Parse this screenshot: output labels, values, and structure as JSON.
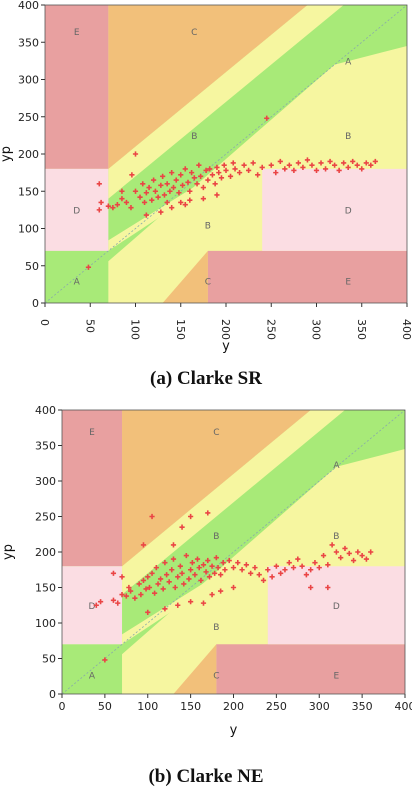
{
  "chart_data": [
    {
      "type": "scatter",
      "caption": "(a) Clarke SR",
      "xlabel": "y",
      "ylabel": "yp",
      "xlim": [
        0,
        400
      ],
      "ylim": [
        0,
        400
      ],
      "xticks": [
        "0",
        "50",
        "100",
        "150",
        "200",
        "250",
        "300",
        "350",
        "400"
      ],
      "yticks": [
        "0",
        "50",
        "100",
        "150",
        "200",
        "250",
        "300",
        "350",
        "400"
      ],
      "x_tick_rotated": true,
      "zone_labels": [
        {
          "label": "E",
          "x": 35,
          "y": 360
        },
        {
          "label": "C",
          "x": 165,
          "y": 360
        },
        {
          "label": "A",
          "x": 335,
          "y": 320
        },
        {
          "label": "B",
          "x": 165,
          "y": 220
        },
        {
          "label": "B",
          "x": 335,
          "y": 220
        },
        {
          "label": "D",
          "x": 35,
          "y": 120
        },
        {
          "label": "D",
          "x": 335,
          "y": 120
        },
        {
          "label": "B",
          "x": 180,
          "y": 100
        },
        {
          "label": "A",
          "x": 35,
          "y": 25
        },
        {
          "label": "C",
          "x": 180,
          "y": 25
        },
        {
          "label": "E",
          "x": 335,
          "y": 25
        }
      ],
      "points": [
        [
          48,
          48
        ],
        [
          60,
          125
        ],
        [
          62,
          135
        ],
        [
          70,
          130
        ],
        [
          75,
          128
        ],
        [
          80,
          132
        ],
        [
          85,
          140
        ],
        [
          90,
          135
        ],
        [
          95,
          128
        ],
        [
          100,
          150
        ],
        [
          105,
          142
        ],
        [
          108,
          160
        ],
        [
          110,
          135
        ],
        [
          112,
          148
        ],
        [
          115,
          155
        ],
        [
          118,
          138
        ],
        [
          120,
          165
        ],
        [
          122,
          150
        ],
        [
          125,
          142
        ],
        [
          128,
          158
        ],
        [
          130,
          170
        ],
        [
          132,
          145
        ],
        [
          135,
          160
        ],
        [
          138,
          150
        ],
        [
          140,
          175
        ],
        [
          142,
          155
        ],
        [
          145,
          165
        ],
        [
          148,
          148
        ],
        [
          150,
          172
        ],
        [
          152,
          158
        ],
        [
          155,
          180
        ],
        [
          158,
          162
        ],
        [
          160,
          150
        ],
        [
          162,
          175
        ],
        [
          165,
          168
        ],
        [
          168,
          160
        ],
        [
          170,
          185
        ],
        [
          172,
          170
        ],
        [
          175,
          155
        ],
        [
          178,
          178
        ],
        [
          180,
          165
        ],
        [
          182,
          180
        ],
        [
          185,
          172
        ],
        [
          188,
          160
        ],
        [
          190,
          182
        ],
        [
          192,
          175
        ],
        [
          195,
          168
        ],
        [
          198,
          185
        ],
        [
          200,
          178
        ],
        [
          205,
          170
        ],
        [
          208,
          188
        ],
        [
          210,
          180
        ],
        [
          215,
          175
        ],
        [
          220,
          185
        ],
        [
          225,
          178
        ],
        [
          230,
          188
        ],
        [
          235,
          172
        ],
        [
          240,
          182
        ],
        [
          245,
          248
        ],
        [
          250,
          185
        ],
        [
          255,
          175
        ],
        [
          260,
          190
        ],
        [
          265,
          180
        ],
        [
          270,
          185
        ],
        [
          275,
          178
        ],
        [
          280,
          188
        ],
        [
          285,
          182
        ],
        [
          290,
          192
        ],
        [
          295,
          185
        ],
        [
          300,
          178
        ],
        [
          305,
          188
        ],
        [
          310,
          180
        ],
        [
          315,
          190
        ],
        [
          320,
          185
        ],
        [
          325,
          178
        ],
        [
          330,
          188
        ],
        [
          335,
          182
        ],
        [
          340,
          190
        ],
        [
          345,
          185
        ],
        [
          350,
          180
        ],
        [
          355,
          188
        ],
        [
          360,
          185
        ],
        [
          365,
          190
        ],
        [
          128,
          122
        ],
        [
          140,
          128
        ],
        [
          155,
          132
        ],
        [
          100,
          200
        ],
        [
          112,
          118
        ],
        [
          96,
          172
        ],
        [
          85,
          150
        ],
        [
          175,
          140
        ],
        [
          150,
          135
        ],
        [
          160,
          138
        ],
        [
          135,
          135
        ],
        [
          190,
          145
        ],
        [
          60,
          160
        ]
      ]
    },
    {
      "type": "scatter",
      "caption": "(b) Clarke NE",
      "xlabel": "y",
      "ylabel": "yp",
      "xlim": [
        0,
        400
      ],
      "ylim": [
        0,
        400
      ],
      "xticks": [
        "0",
        "50",
        "100",
        "150",
        "200",
        "250",
        "300",
        "350",
        "400"
      ],
      "yticks": [
        "0",
        "50",
        "100",
        "150",
        "200",
        "250",
        "300",
        "350",
        "400"
      ],
      "x_tick_rotated": false,
      "zone_labels": [
        {
          "label": "E",
          "x": 35,
          "y": 365
        },
        {
          "label": "C",
          "x": 180,
          "y": 365
        },
        {
          "label": "A",
          "x": 320,
          "y": 318
        },
        {
          "label": "B",
          "x": 180,
          "y": 218
        },
        {
          "label": "B",
          "x": 320,
          "y": 218
        },
        {
          "label": "D",
          "x": 35,
          "y": 120
        },
        {
          "label": "D",
          "x": 320,
          "y": 120
        },
        {
          "label": "B",
          "x": 180,
          "y": 90
        },
        {
          "label": "A",
          "x": 35,
          "y": 22
        },
        {
          "label": "C",
          "x": 180,
          "y": 22
        },
        {
          "label": "E",
          "x": 320,
          "y": 22
        }
      ],
      "points": [
        [
          40,
          125
        ],
        [
          45,
          130
        ],
        [
          50,
          48
        ],
        [
          60,
          132
        ],
        [
          65,
          128
        ],
        [
          70,
          140
        ],
        [
          75,
          138
        ],
        [
          78,
          150
        ],
        [
          80,
          145
        ],
        [
          85,
          135
        ],
        [
          90,
          155
        ],
        [
          92,
          140
        ],
        [
          95,
          160
        ],
        [
          98,
          148
        ],
        [
          100,
          165
        ],
        [
          102,
          150
        ],
        [
          105,
          170
        ],
        [
          108,
          142
        ],
        [
          110,
          178
        ],
        [
          112,
          155
        ],
        [
          115,
          162
        ],
        [
          118,
          148
        ],
        [
          120,
          185
        ],
        [
          122,
          168
        ],
        [
          125,
          158
        ],
        [
          128,
          175
        ],
        [
          130,
          190
        ],
        [
          132,
          150
        ],
        [
          135,
          165
        ],
        [
          138,
          180
        ],
        [
          140,
          170
        ],
        [
          142,
          155
        ],
        [
          145,
          195
        ],
        [
          148,
          162
        ],
        [
          150,
          175
        ],
        [
          152,
          185
        ],
        [
          155,
          168
        ],
        [
          158,
          190
        ],
        [
          160,
          178
        ],
        [
          162,
          160
        ],
        [
          165,
          182
        ],
        [
          168,
          172
        ],
        [
          170,
          188
        ],
        [
          172,
          165
        ],
        [
          175,
          180
        ],
        [
          178,
          170
        ],
        [
          180,
          192
        ],
        [
          182,
          178
        ],
        [
          185,
          168
        ],
        [
          188,
          185
        ],
        [
          190,
          175
        ],
        [
          195,
          188
        ],
        [
          200,
          178
        ],
        [
          205,
          185
        ],
        [
          210,
          175
        ],
        [
          215,
          182
        ],
        [
          220,
          170
        ],
        [
          225,
          178
        ],
        [
          230,
          168
        ],
        [
          235,
          160
        ],
        [
          240,
          175
        ],
        [
          245,
          165
        ],
        [
          250,
          180
        ],
        [
          255,
          170
        ],
        [
          260,
          175
        ],
        [
          265,
          185
        ],
        [
          270,
          178
        ],
        [
          275,
          190
        ],
        [
          280,
          180
        ],
        [
          285,
          168
        ],
        [
          290,
          175
        ],
        [
          295,
          185
        ],
        [
          300,
          178
        ],
        [
          305,
          195
        ],
        [
          310,
          182
        ],
        [
          315,
          210
        ],
        [
          320,
          200
        ],
        [
          325,
          192
        ],
        [
          330,
          205
        ],
        [
          335,
          198
        ],
        [
          340,
          188
        ],
        [
          345,
          200
        ],
        [
          350,
          195
        ],
        [
          355,
          190
        ],
        [
          360,
          200
        ],
        [
          105,
          250
        ],
        [
          150,
          250
        ],
        [
          95,
          210
        ],
        [
          130,
          210
        ],
        [
          170,
          255
        ],
        [
          140,
          235
        ],
        [
          290,
          150
        ],
        [
          310,
          150
        ],
        [
          120,
          120
        ],
        [
          135,
          125
        ],
        [
          150,
          130
        ],
        [
          165,
          128
        ],
        [
          100,
          115
        ],
        [
          175,
          140
        ],
        [
          60,
          170
        ],
        [
          70,
          165
        ],
        [
          185,
          145
        ],
        [
          200,
          150
        ]
      ]
    }
  ]
}
